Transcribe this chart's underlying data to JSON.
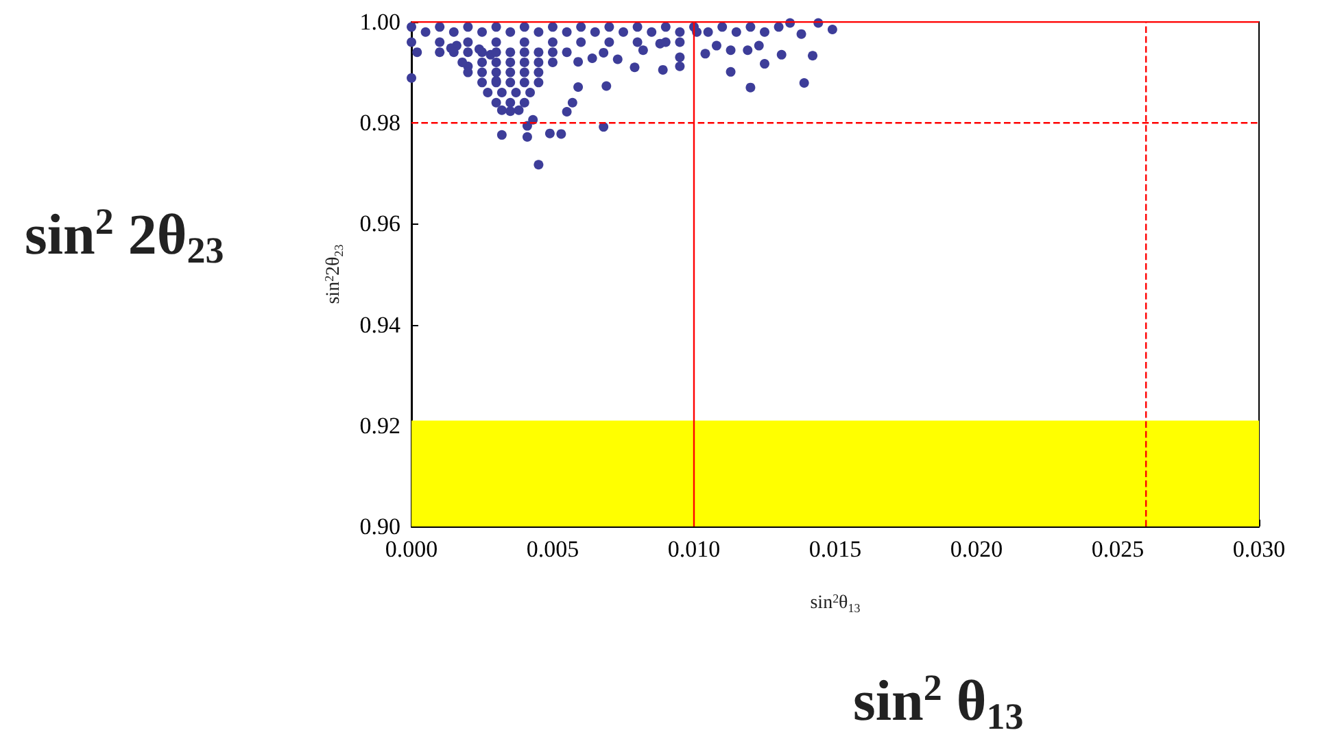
{
  "chart_data": {
    "type": "scatter",
    "xlabel": "sin$^{2}$θ$_{13}$",
    "ylabel": "sin$^{2}$2θ$_{23}$",
    "annotations": [
      "sin$^{2}$ 2θ$_{23}$",
      "sin$^{2}$ θ$_{13}$"
    ],
    "xlim": [
      0,
      0.03
    ],
    "xticks": [
      {
        "value": 0,
        "label": "0.000"
      },
      {
        "value": 0.005,
        "label": "0.005"
      },
      {
        "value": 0.01,
        "label": "0.010"
      },
      {
        "value": 0.015,
        "label": "0.015"
      },
      {
        "value": 0.02,
        "label": "0.020"
      },
      {
        "value": 0.025,
        "label": "0.025"
      },
      {
        "value": 0.03,
        "label": "0.030"
      }
    ],
    "ylim": [
      0.9,
      1.0
    ],
    "yticks": [
      {
        "value": 0.9,
        "label": "0.90"
      },
      {
        "value": 0.92,
        "label": "0.92"
      },
      {
        "value": 0.94,
        "label": "0.94"
      },
      {
        "value": 0.96,
        "label": "0.96"
      },
      {
        "value": 0.98,
        "label": "0.98"
      },
      {
        "value": 1.0,
        "label": "1.00"
      }
    ],
    "grid": false,
    "marker": "circle",
    "ref_lines": [
      {
        "axis": "x",
        "value": 0.01,
        "color": "#ff0000",
        "line_style": "solid"
      },
      {
        "axis": "x",
        "value": 0.026,
        "color": "#ff0000",
        "line_style": "dashed"
      },
      {
        "axis": "y",
        "value": 0.98,
        "color": "#ff0000",
        "line_style": "dashed"
      },
      {
        "axis": "y",
        "value": 1.0,
        "color": "#ff0000",
        "line_style": "solid"
      }
    ],
    "bands": [
      {
        "axis": "y",
        "from": 0.9,
        "to": 0.921,
        "color": "#ffff00"
      }
    ],
    "series": [
      {
        "color": "#3d3d99",
        "x": [
          0,
          0.002,
          0.003,
          0.0035,
          0.0032,
          0.0041,
          0.0045,
          0.0049,
          0.0053,
          0.0041,
          0.0043,
          0.0055,
          0.0057,
          0.0069,
          0.0068,
          0.0059,
          0.0073,
          0.0079,
          0.0089,
          0.0095,
          0.0113,
          0.012,
          0.0139,
          0.0142,
          0.0125,
          0.0119,
          0.0131,
          0.0149,
          0.0123,
          0.0113,
          0.0104,
          0.0108,
          0.0138,
          0.0144,
          0.0134,
          0.0101,
          0.0095,
          0.0088,
          0.0082,
          0.0068,
          0.0064,
          0.0059,
          0.0028,
          0.0024,
          0.0016,
          0.0014,
          0,
          0.0005,
          0.001,
          0.0015,
          0.002,
          0.0025,
          0.003,
          0.0035,
          0.004,
          0.0045,
          0.005,
          0.0055,
          0.006,
          0.0065,
          0.007,
          0.0075,
          0.008,
          0.0085,
          0.009,
          0.0095,
          0.01,
          0.0105,
          0.011,
          0.0115,
          0.012,
          0.0125,
          0.013,
          0,
          0.001,
          0.002,
          0.003,
          0.004,
          0.005,
          0.006,
          0.007,
          0.008,
          0.009,
          0.0095,
          0.0002,
          0.001,
          0.0015,
          0.002,
          0.0025,
          0.003,
          0.0035,
          0.004,
          0.0045,
          0.005,
          0.0055,
          0.0018,
          0.0025,
          0.003,
          0.0035,
          0.004,
          0.0045,
          0.005,
          0.002,
          0.0025,
          0.003,
          0.0035,
          0.004,
          0.0045,
          0.0025,
          0.003,
          0.0035,
          0.004,
          0.0045,
          0.0027,
          0.0032,
          0.0037,
          0.0042,
          0.003,
          0.0035,
          0.004,
          0.0032,
          0.0038
        ],
        "values": [
          0.9889,
          0.9912,
          0.9883,
          0.9823,
          0.9776,
          0.9772,
          0.9717,
          0.9779,
          0.9778,
          0.9794,
          0.9806,
          0.9822,
          0.984,
          0.9873,
          0.9792,
          0.9871,
          0.9926,
          0.991,
          0.9905,
          0.9912,
          0.9901,
          0.987,
          0.9879,
          0.9933,
          0.9917,
          0.9944,
          0.9935,
          0.9985,
          0.9953,
          0.9944,
          0.9937,
          0.9953,
          0.9976,
          0.9998,
          0.9998,
          0.998,
          0.993,
          0.9957,
          0.9944,
          0.9939,
          0.9928,
          0.9921,
          0.9935,
          0.9946,
          0.9953,
          0.9948,
          0.999,
          0.998,
          0.999,
          0.998,
          0.999,
          0.998,
          0.999,
          0.998,
          0.999,
          0.998,
          0.999,
          0.998,
          0.999,
          0.998,
          0.999,
          0.998,
          0.999,
          0.998,
          0.999,
          0.998,
          0.999,
          0.998,
          0.999,
          0.998,
          0.999,
          0.998,
          0.999,
          0.996,
          0.996,
          0.996,
          0.996,
          0.996,
          0.996,
          0.996,
          0.996,
          0.996,
          0.996,
          0.996,
          0.994,
          0.994,
          0.994,
          0.994,
          0.994,
          0.994,
          0.994,
          0.994,
          0.994,
          0.994,
          0.994,
          0.992,
          0.992,
          0.992,
          0.992,
          0.992,
          0.992,
          0.992,
          0.99,
          0.99,
          0.99,
          0.99,
          0.99,
          0.99,
          0.988,
          0.988,
          0.988,
          0.988,
          0.988,
          0.986,
          0.986,
          0.986,
          0.986,
          0.984,
          0.984,
          0.984,
          0.9825,
          0.9825
        ]
      }
    ]
  }
}
